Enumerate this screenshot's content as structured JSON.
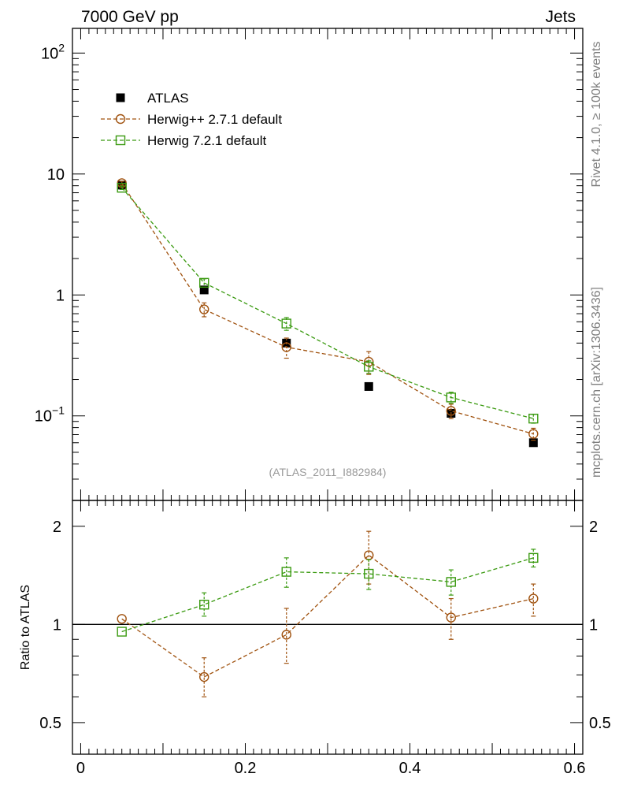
{
  "header": {
    "left": "7000 GeV pp",
    "right": "Jets"
  },
  "side_text": {
    "rivet": "Rivet 4.1.0, ≥ 100k events",
    "mcplots": "mcplots.cern.ch [arXiv:1306.3436]"
  },
  "colors": {
    "atlas": "#000000",
    "herwigpp": "#a0520f",
    "herwig7": "#3a9a10",
    "annotation": "#999999"
  },
  "chart_data": [
    {
      "type": "scatter",
      "panel": "main",
      "yscale": "log",
      "xlim": [
        -0.01,
        0.61
      ],
      "ylim": [
        0.02,
        160
      ],
      "yticks": [
        {
          "value": 100,
          "label": "10",
          "sup": "2"
        },
        {
          "value": 10,
          "label": "10",
          "sup": ""
        },
        {
          "value": 1,
          "label": "1",
          "sup": ""
        },
        {
          "value": 0.1,
          "label": "10",
          "sup": "−1"
        }
      ],
      "annotation": "(ATLAS_2011_I882984)",
      "legend": {
        "position": "top-left",
        "entries": [
          "ATLAS",
          "Herwig++ 2.7.1 default",
          "Herwig 7.2.1 default"
        ]
      },
      "series": [
        {
          "name": "ATLAS",
          "marker": "filled-square",
          "x": [
            0.05,
            0.15,
            0.25,
            0.35,
            0.45,
            0.55
          ],
          "y": [
            8.1,
            1.1,
            0.4,
            0.175,
            0.105,
            0.06
          ]
        },
        {
          "name": "Herwig++ 2.7.1 default",
          "marker": "open-circle",
          "line": "dashed",
          "x": [
            0.05,
            0.15,
            0.25,
            0.35,
            0.45,
            0.55
          ],
          "y": [
            8.4,
            0.76,
            0.37,
            0.28,
            0.11,
            0.071
          ],
          "yerr": [
            0.3,
            0.1,
            0.07,
            0.06,
            0.015,
            0.008
          ]
        },
        {
          "name": "Herwig 7.2.1 default",
          "marker": "open-square",
          "line": "dashed",
          "x": [
            0.05,
            0.15,
            0.25,
            0.35,
            0.45,
            0.55
          ],
          "y": [
            7.7,
            1.26,
            0.58,
            0.255,
            0.142,
            0.095
          ],
          "yerr": [
            0.25,
            0.1,
            0.07,
            0.03,
            0.015,
            0.008
          ]
        }
      ]
    },
    {
      "type": "scatter",
      "panel": "ratio",
      "ylabel": "Ratio to ATLAS",
      "yscale": "log",
      "xlim": [
        -0.01,
        0.61
      ],
      "ylim": [
        0.4,
        2.4
      ],
      "yticks": [
        {
          "value": 2,
          "label": "2"
        },
        {
          "value": 1,
          "label": "1"
        },
        {
          "value": 0.5,
          "label": "0.5"
        }
      ],
      "xticks": [
        {
          "value": 0,
          "label": "0"
        },
        {
          "value": 0.2,
          "label": "0.2"
        },
        {
          "value": 0.4,
          "label": "0.4"
        },
        {
          "value": 0.6,
          "label": "0.6"
        }
      ],
      "reference": 1,
      "series": [
        {
          "name": "Herwig++ 2.7.1 default",
          "x": [
            0.05,
            0.15,
            0.25,
            0.35,
            0.45,
            0.55
          ],
          "y": [
            1.04,
            0.69,
            0.93,
            1.63,
            1.05,
            1.2
          ],
          "ylo": [
            1.04,
            0.6,
            0.76,
            1.33,
            0.9,
            1.06
          ],
          "yhi": [
            1.04,
            0.79,
            1.12,
            1.93,
            1.2,
            1.33
          ]
        },
        {
          "name": "Herwig 7.2.1 default",
          "x": [
            0.05,
            0.15,
            0.25,
            0.35,
            0.45,
            0.55
          ],
          "y": [
            0.95,
            1.15,
            1.45,
            1.43,
            1.35,
            1.6
          ],
          "ylo": [
            0.95,
            1.06,
            1.3,
            1.28,
            1.23,
            1.5
          ],
          "yhi": [
            0.95,
            1.25,
            1.6,
            1.58,
            1.47,
            1.7
          ]
        }
      ]
    }
  ]
}
